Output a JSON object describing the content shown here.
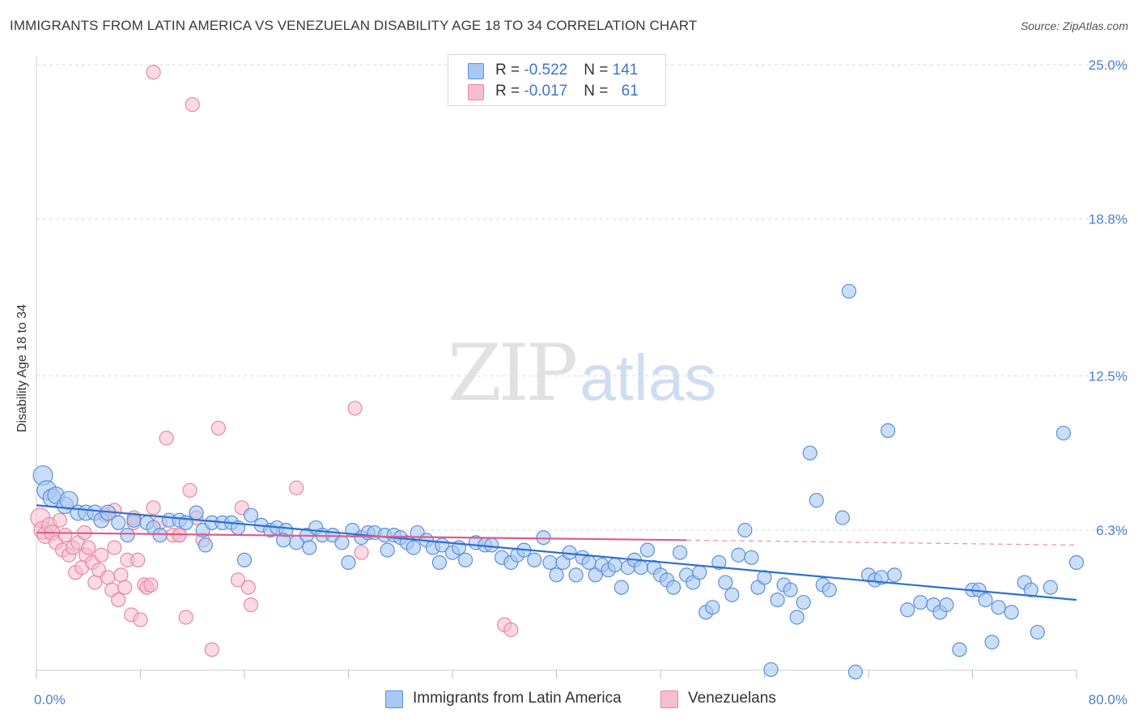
{
  "title": "IMMIGRANTS FROM LATIN AMERICA VS VENEZUELAN DISABILITY AGE 18 TO 34 CORRELATION CHART",
  "source": "Source: ZipAtlas.com",
  "watermark": {
    "zip": "ZIP",
    "atlas": "atlas"
  },
  "legend": {
    "rows": [
      {
        "r_label": "R = ",
        "r_value": "-0.522",
        "n_label": "N = ",
        "n_value": "141"
      },
      {
        "r_label": "R = ",
        "r_value": "-0.017",
        "n_label": "N = ",
        "n_value": "61"
      }
    ]
  },
  "bottom_legend": {
    "series1": "Immigrants from Latin America",
    "series2": "Venezuelans"
  },
  "colors": {
    "blue_fill": "#a9c8f2",
    "blue_stroke": "#5b8fdc",
    "blue_line": "#2f6fcf",
    "pink_fill": "#f7bccd",
    "pink_stroke": "#e489a4",
    "pink_line": "#e05b8c",
    "grid": "#d9d9d9",
    "tick_label": "#4a7fd0"
  },
  "chart_data": {
    "type": "scatter",
    "title": "IMMIGRANTS FROM LATIN AMERICA VS VENEZUELAN DISABILITY AGE 18 TO 34 CORRELATION CHART",
    "xlabel": "",
    "ylabel": "Disability Age 18 to 34",
    "xlim": [
      0,
      80
    ],
    "ylim": [
      0,
      26
    ],
    "x_tick_labels": [
      "0.0%",
      "80.0%"
    ],
    "y_ticks": [
      6.3,
      12.5,
      18.8,
      25.0
    ],
    "y_tick_labels": [
      "6.3%",
      "12.5%",
      "18.8%",
      "25.0%"
    ],
    "grid": true,
    "legend_position": "top-center",
    "series": [
      {
        "name": "Immigrants from Latin America",
        "R": -0.522,
        "N": 141,
        "trend": {
          "x": [
            0,
            80
          ],
          "y": [
            7.3,
            3.5
          ]
        },
        "points": [
          [
            0.5,
            8.5,
            1.4
          ],
          [
            0.8,
            7.9,
            1.4
          ],
          [
            1.2,
            7.6,
            1.3
          ],
          [
            1.5,
            7.7,
            1.2
          ],
          [
            2.2,
            7.3,
            1.2
          ],
          [
            2.5,
            7.5,
            1.3
          ],
          [
            3.2,
            7.0,
            1.1
          ],
          [
            3.8,
            7.0,
            1.1
          ],
          [
            4.5,
            7.0,
            1.1
          ],
          [
            5.0,
            6.7,
            1.1
          ],
          [
            5.5,
            7.0,
            1.1
          ],
          [
            6.3,
            6.6,
            1.0
          ],
          [
            7.5,
            6.7,
            1.0
          ],
          [
            8.5,
            6.6,
            1.0
          ],
          [
            9.0,
            6.4,
            1.0
          ],
          [
            10.2,
            6.7,
            1.0
          ],
          [
            11,
            6.7,
            1.0
          ],
          [
            11.5,
            6.6,
            1.0
          ],
          [
            12.3,
            7.0,
            1.0
          ],
          [
            12.8,
            6.3,
            1.0
          ],
          [
            13.5,
            6.6,
            1.0
          ],
          [
            14.3,
            6.6,
            1.0
          ],
          [
            15,
            6.6,
            1.0
          ],
          [
            15.5,
            6.4,
            1.0
          ],
          [
            16.5,
            6.9,
            1.0
          ],
          [
            17.3,
            6.5,
            1.0
          ],
          [
            18,
            6.3,
            1.0
          ],
          [
            18.5,
            6.4,
            1.0
          ],
          [
            19.2,
            6.3,
            1.0
          ],
          [
            20,
            5.8,
            1.0
          ],
          [
            20.8,
            6.1,
            1.0
          ],
          [
            21.5,
            6.4,
            1.0
          ],
          [
            22,
            6.1,
            1.0
          ],
          [
            22.8,
            6.1,
            1.0
          ],
          [
            23.5,
            5.8,
            1.0
          ],
          [
            24.3,
            6.3,
            1.0
          ],
          [
            25,
            6.0,
            1.0
          ],
          [
            25.5,
            6.2,
            1.0
          ],
          [
            26,
            6.2,
            1.0
          ],
          [
            26.8,
            6.1,
            1.0
          ],
          [
            27.5,
            6.1,
            1.0
          ],
          [
            28,
            6.0,
            1.0
          ],
          [
            28.5,
            5.8,
            1.0
          ],
          [
            29.3,
            6.2,
            1.0
          ],
          [
            30,
            5.9,
            1.0
          ],
          [
            30.5,
            5.6,
            1.0
          ],
          [
            31.2,
            5.7,
            1.0
          ],
          [
            32,
            5.4,
            1.0
          ],
          [
            32.5,
            5.6,
            1.0
          ],
          [
            33,
            5.1,
            1.0
          ],
          [
            33.8,
            5.8,
            1.0
          ],
          [
            34.5,
            5.7,
            1.0
          ],
          [
            35,
            5.7,
            1.0
          ],
          [
            35.8,
            5.2,
            1.0
          ],
          [
            36.5,
            5.0,
            1.0
          ],
          [
            37,
            5.3,
            1.0
          ],
          [
            37.5,
            5.5,
            1.0
          ],
          [
            38.3,
            5.1,
            1.0
          ],
          [
            39,
            6.0,
            1.0
          ],
          [
            39.5,
            5.0,
            1.0
          ],
          [
            40,
            4.5,
            1.0
          ],
          [
            40.5,
            5.0,
            1.0
          ],
          [
            41,
            5.4,
            1.0
          ],
          [
            41.5,
            4.5,
            1.0
          ],
          [
            42,
            5.2,
            1.0
          ],
          [
            42.5,
            5.0,
            1.0
          ],
          [
            43,
            4.5,
            1.0
          ],
          [
            43.5,
            4.9,
            1.0
          ],
          [
            44,
            4.7,
            1.0
          ],
          [
            44.5,
            4.9,
            1.0
          ],
          [
            45,
            4.0,
            1.0
          ],
          [
            45.5,
            4.8,
            1.0
          ],
          [
            46,
            5.1,
            1.0
          ],
          [
            46.5,
            4.8,
            1.0
          ],
          [
            47,
            5.5,
            1.0
          ],
          [
            47.5,
            4.8,
            1.0
          ],
          [
            48,
            4.5,
            1.0
          ],
          [
            48.5,
            4.3,
            1.0
          ],
          [
            49,
            4.0,
            1.0
          ],
          [
            49.5,
            5.4,
            1.0
          ],
          [
            50,
            4.5,
            1.0
          ],
          [
            50.5,
            4.2,
            1.0
          ],
          [
            51,
            4.6,
            1.0
          ],
          [
            51.5,
            3.0,
            1.0
          ],
          [
            52,
            3.2,
            1.0
          ],
          [
            52.5,
            5.0,
            1.0
          ],
          [
            53,
            4.2,
            1.0
          ],
          [
            53.5,
            3.7,
            1.0
          ],
          [
            54,
            5.3,
            1.0
          ],
          [
            54.5,
            6.3,
            1.0
          ],
          [
            55,
            5.2,
            1.0
          ],
          [
            55.5,
            4.0,
            1.0
          ],
          [
            56,
            4.4,
            1.0
          ],
          [
            56.5,
            0.7,
            1.0
          ],
          [
            57,
            3.5,
            1.0
          ],
          [
            57.5,
            4.1,
            1.0
          ],
          [
            58,
            3.9,
            1.0
          ],
          [
            58.5,
            2.8,
            1.0
          ],
          [
            59,
            3.4,
            1.0
          ],
          [
            59.5,
            9.4,
            1.0
          ],
          [
            60,
            7.5,
            1.0
          ],
          [
            60.5,
            4.1,
            1.0
          ],
          [
            61,
            3.9,
            1.0
          ],
          [
            62,
            6.8,
            1.0
          ],
          [
            62.5,
            15.9,
            1.0
          ],
          [
            63,
            0.6,
            1.0
          ],
          [
            64,
            4.5,
            1.0
          ],
          [
            64.5,
            4.3,
            1.0
          ],
          [
            65,
            4.4,
            1.0
          ],
          [
            65.5,
            10.3,
            1.0
          ],
          [
            66,
            4.5,
            1.0
          ],
          [
            67,
            3.1,
            1.0
          ],
          [
            68,
            3.4,
            1.0
          ],
          [
            69,
            3.3,
            1.0
          ],
          [
            69.5,
            3.0,
            1.0
          ],
          [
            70,
            3.3,
            1.0
          ],
          [
            71,
            1.5,
            1.0
          ],
          [
            72,
            3.9,
            1.0
          ],
          [
            72.5,
            3.9,
            1.0
          ],
          [
            73,
            3.5,
            1.0
          ],
          [
            73.5,
            1.8,
            1.0
          ],
          [
            74,
            3.2,
            1.0
          ],
          [
            75,
            3.0,
            1.0
          ],
          [
            76,
            4.2,
            1.0
          ],
          [
            76.5,
            3.9,
            1.0
          ],
          [
            77,
            2.2,
            1.0
          ],
          [
            78,
            4.0,
            1.0
          ],
          [
            79,
            10.2,
            1.0
          ],
          [
            80,
            5.0,
            1.0
          ],
          [
            7,
            6.1,
            1.0
          ],
          [
            9.5,
            6.1,
            1.0
          ],
          [
            13,
            5.7,
            1.0
          ],
          [
            16,
            5.1,
            1.0
          ],
          [
            19,
            5.9,
            1.0
          ],
          [
            21,
            5.6,
            1.0
          ],
          [
            24,
            5.0,
            1.0
          ],
          [
            27,
            5.5,
            1.0
          ],
          [
            29,
            5.6,
            1.0
          ],
          [
            31,
            5.0,
            1.0
          ]
        ]
      },
      {
        "name": "Venezuelans",
        "R": -0.017,
        "N": 61,
        "trend": {
          "x": [
            0,
            50
          ],
          "y": [
            6.2,
            5.9
          ]
        },
        "trend_dashed_extension": {
          "x": [
            50,
            80
          ],
          "y": [
            5.9,
            5.7
          ]
        },
        "points": [
          [
            0.3,
            6.8,
            1.4
          ],
          [
            0.5,
            6.3,
            1.3
          ],
          [
            0.7,
            6.1,
            1.2
          ],
          [
            1.0,
            6.5,
            1.1
          ],
          [
            1.2,
            6.2,
            1.1
          ],
          [
            1.5,
            5.8,
            1.0
          ],
          [
            1.8,
            6.7,
            1.0
          ],
          [
            2.0,
            5.5,
            1.0
          ],
          [
            2.2,
            6.1,
            1.0
          ],
          [
            2.5,
            5.3,
            1.0
          ],
          [
            2.8,
            5.6,
            1.0
          ],
          [
            3.0,
            4.6,
            1.0
          ],
          [
            3.2,
            5.8,
            1.0
          ],
          [
            3.5,
            4.8,
            1.0
          ],
          [
            3.8,
            5.3,
            1.0
          ],
          [
            4.0,
            5.6,
            1.0
          ],
          [
            4.3,
            5.0,
            1.0
          ],
          [
            4.5,
            4.2,
            1.0
          ],
          [
            4.8,
            4.7,
            1.0
          ],
          [
            5.0,
            5.3,
            1.0
          ],
          [
            5.3,
            6.9,
            1.0
          ],
          [
            5.5,
            4.4,
            1.0
          ],
          [
            5.8,
            3.9,
            1.0
          ],
          [
            6.0,
            7.1,
            1.0
          ],
          [
            6.3,
            3.5,
            1.0
          ],
          [
            6.5,
            4.5,
            1.0
          ],
          [
            6.8,
            4.0,
            1.0
          ],
          [
            7.0,
            5.1,
            1.0
          ],
          [
            7.3,
            2.9,
            1.0
          ],
          [
            7.5,
            6.8,
            1.0
          ],
          [
            7.8,
            5.1,
            1.0
          ],
          [
            8.0,
            2.7,
            1.0
          ],
          [
            8.3,
            4.1,
            1.0
          ],
          [
            8.5,
            4.0,
            1.0
          ],
          [
            8.8,
            4.1,
            1.0
          ],
          [
            9.0,
            7.2,
            1.0
          ],
          [
            9.5,
            6.6,
            1.0
          ],
          [
            10,
            10.0,
            1.0
          ],
          [
            10.5,
            6.1,
            1.0
          ],
          [
            11,
            6.1,
            1.0
          ],
          [
            11.5,
            2.8,
            1.0
          ],
          [
            11.8,
            7.9,
            1.0
          ],
          [
            12,
            23.4,
            1.0
          ],
          [
            12.3,
            6.8,
            1.0
          ],
          [
            12.8,
            5.9,
            1.0
          ],
          [
            13.5,
            1.5,
            1.0
          ],
          [
            14,
            10.4,
            1.0
          ],
          [
            15.5,
            4.3,
            1.0
          ],
          [
            15.8,
            7.2,
            1.0
          ],
          [
            16.3,
            4.0,
            1.0
          ],
          [
            16.5,
            3.3,
            1.0
          ],
          [
            20,
            8.0,
            1.0
          ],
          [
            24.5,
            11.2,
            1.0
          ],
          [
            25,
            5.4,
            1.0
          ],
          [
            36,
            2.5,
            1.0
          ],
          [
            36.5,
            2.3,
            1.0
          ],
          [
            7.5,
            6.6,
            1.0
          ],
          [
            9,
            24.7,
            1.0
          ],
          [
            11,
            6.1,
            1.0
          ],
          [
            6,
            5.6,
            1.0
          ],
          [
            3.7,
            6.2,
            1.0
          ]
        ]
      }
    ]
  }
}
